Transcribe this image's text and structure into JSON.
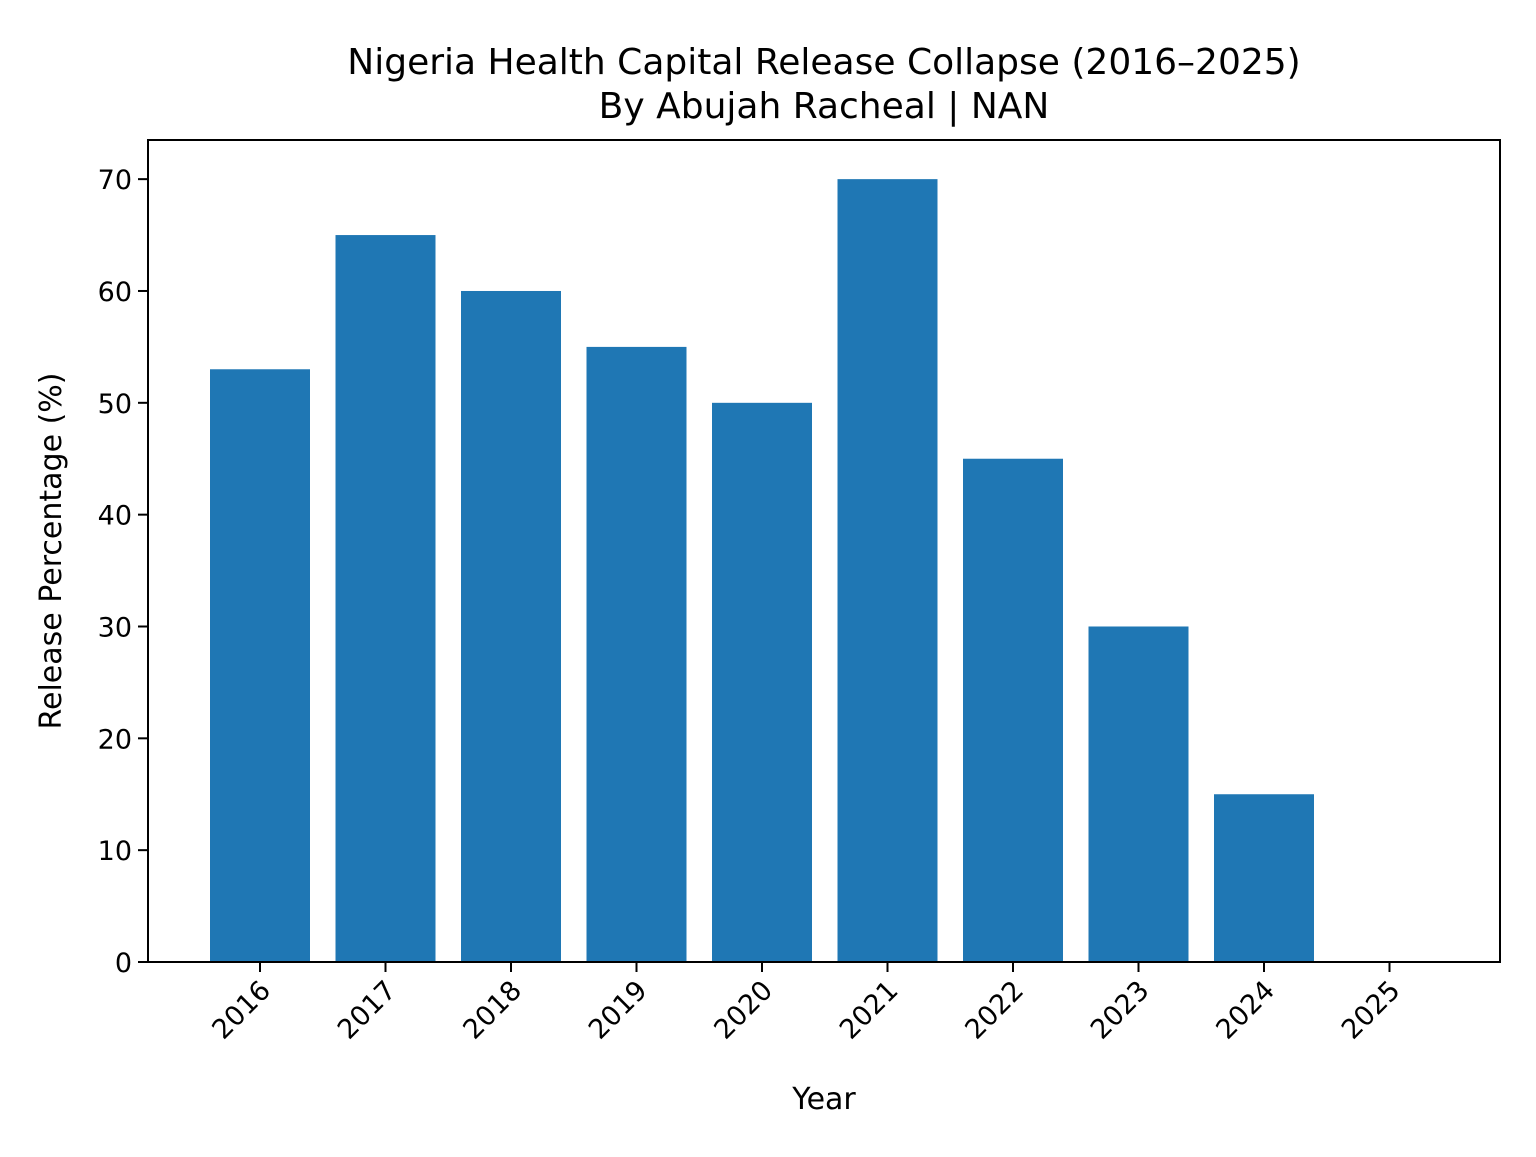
{
  "chart_data": {
    "type": "bar",
    "title_line1": "Nigeria Health Capital Release Collapse (2016–2025)",
    "title_line2": "By Abujah Racheal | NAN",
    "xlabel": "Year",
    "ylabel": "Release Percentage (%)",
    "categories": [
      "2016",
      "2017",
      "2018",
      "2019",
      "2020",
      "2021",
      "2022",
      "2023",
      "2024",
      "2025"
    ],
    "values": [
      53,
      65,
      60,
      55,
      50,
      70,
      45,
      30,
      15,
      0
    ],
    "ylim": [
      0,
      73.5
    ],
    "yticks": [
      0,
      10,
      20,
      30,
      40,
      50,
      60,
      70
    ],
    "bar_color": "#1f77b4",
    "grid": false,
    "legend": "none"
  }
}
